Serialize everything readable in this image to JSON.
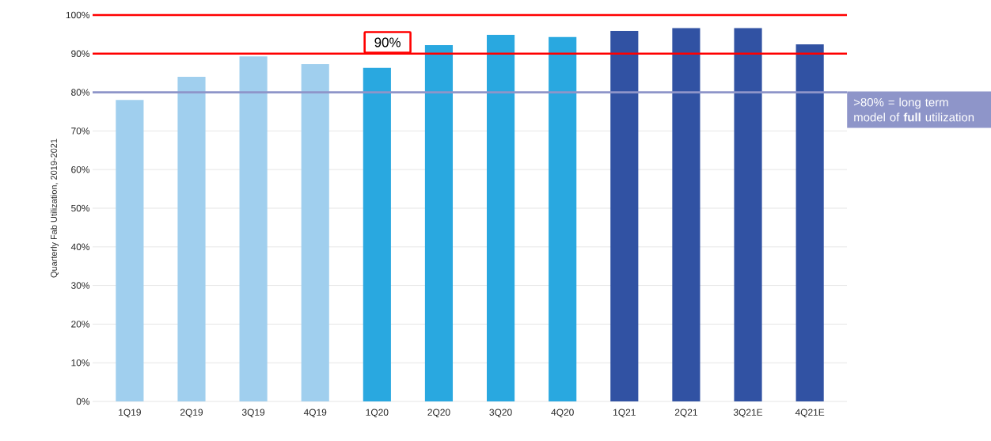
{
  "chart_data": {
    "type": "bar",
    "ylabel": "Quarterly Fab Utilization, 2019-2021",
    "categories": [
      "1Q19",
      "2Q19",
      "3Q19",
      "4Q19",
      "1Q20",
      "2Q20",
      "3Q20",
      "4Q20",
      "1Q21",
      "2Q21",
      "3Q21E",
      "4Q21E"
    ],
    "values": [
      78,
      84,
      89.3,
      87.3,
      86.3,
      92.2,
      94.9,
      94.3,
      95.9,
      96.6,
      96.6,
      92.4
    ],
    "colors": [
      "#a0cfee",
      "#a0cfee",
      "#a0cfee",
      "#a0cfee",
      "#29a8e0",
      "#29a8e0",
      "#29a8e0",
      "#29a8e0",
      "#3152a3",
      "#3152a3",
      "#3152a3",
      "#3152a3"
    ],
    "ylim": [
      0,
      100
    ],
    "yticks": [
      {
        "value": 0,
        "label": "0%"
      },
      {
        "value": 10,
        "label": "10%"
      },
      {
        "value": 20,
        "label": "20%"
      },
      {
        "value": 30,
        "label": "30%"
      },
      {
        "value": 40,
        "label": "40%"
      },
      {
        "value": 50,
        "label": "50%"
      },
      {
        "value": 60,
        "label": "60%"
      },
      {
        "value": 70,
        "label": "70%"
      },
      {
        "value": 80,
        "label": "80%"
      },
      {
        "value": 90,
        "label": "90%"
      },
      {
        "value": 100,
        "label": "100%"
      }
    ],
    "grid": "y",
    "ref_lines": [
      {
        "axis": "y",
        "value": 100,
        "color": "#ff0000"
      },
      {
        "axis": "y",
        "value": 90,
        "color": "#ff0000",
        "label": "90%"
      },
      {
        "axis": "y",
        "value": 80,
        "color": "#8e95c9",
        "label": ">80% = long term model of **full** utilization"
      }
    ]
  }
}
